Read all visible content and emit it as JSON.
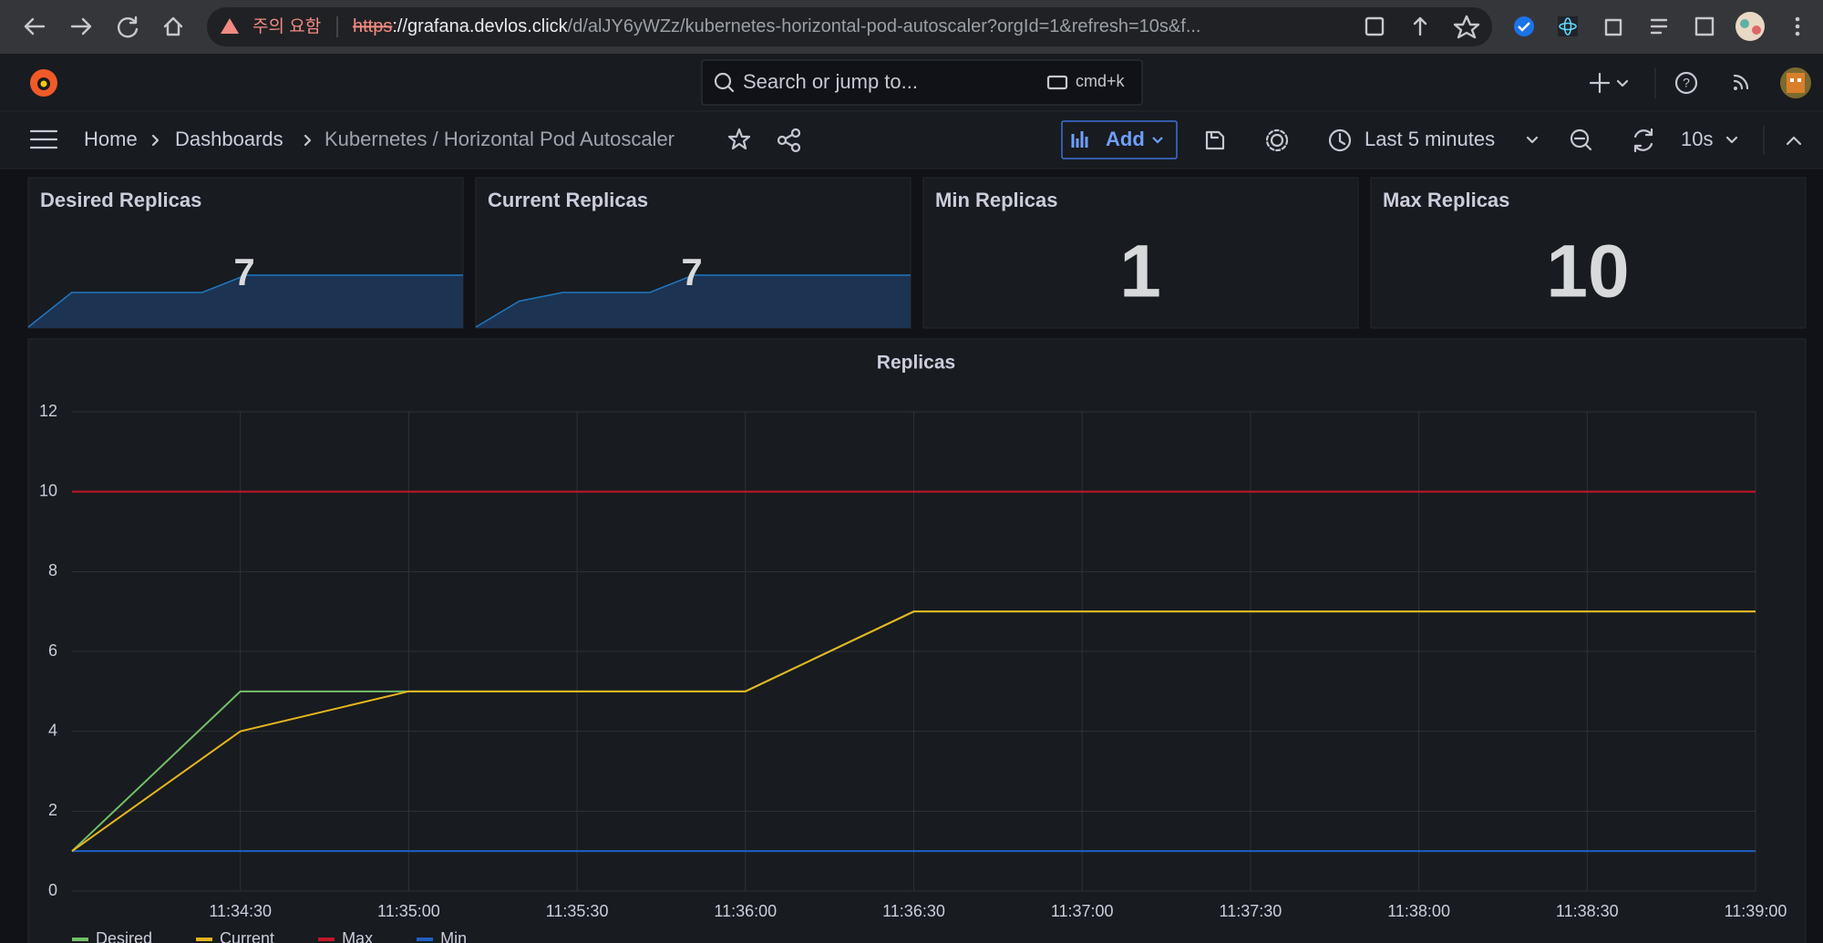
{
  "browser": {
    "warning": "주의 요함",
    "url_scheme": "https",
    "url_host": "://grafana.devlos.click",
    "url_path": "/d/alJY6yWZz/kubernetes-horizontal-pod-autoscaler?orgId=1&refresh=10s&f..."
  },
  "topbar": {
    "search_placeholder": "Search or jump to...",
    "shortcut": "cmd+k"
  },
  "breadcrumb": {
    "items": [
      "Home",
      "Dashboards",
      "Kubernetes / Horizontal Pod Autoscaler"
    ]
  },
  "toolbar": {
    "add": "Add",
    "time_range": "Last 5 minutes",
    "refresh": "10s"
  },
  "stats": [
    {
      "title": "Desired Replicas",
      "value": 7
    },
    {
      "title": "Current Replicas",
      "value": 7
    },
    {
      "title": "Min Replicas",
      "value": 1
    },
    {
      "title": "Max Replicas",
      "value": 10
    }
  ],
  "chart_data": {
    "type": "line",
    "title": "Replicas",
    "x": [
      "11:34:00",
      "11:34:30",
      "11:35:00",
      "11:36:00",
      "11:36:30",
      "11:39:00"
    ],
    "xlim": [
      "11:34:00",
      "11:39:00"
    ],
    "xticks": [
      "11:34:30",
      "11:35:00",
      "11:35:30",
      "11:36:00",
      "11:36:30",
      "11:37:00",
      "11:37:30",
      "11:38:00",
      "11:38:30",
      "11:39:00"
    ],
    "ylim": [
      0,
      12
    ],
    "yticks": [
      0,
      2,
      4,
      6,
      8,
      10,
      12
    ],
    "grid": true,
    "legend": "bottom",
    "series": [
      {
        "name": "Desired",
        "color": "#73bf69",
        "values": [
          1,
          5,
          5,
          5,
          7,
          7
        ]
      },
      {
        "name": "Current",
        "color": "#e5b51f",
        "values": [
          1,
          4,
          5,
          5,
          7,
          7
        ]
      },
      {
        "name": "Max",
        "color": "#c4162a",
        "values": [
          10,
          10,
          10,
          10,
          10,
          10
        ]
      },
      {
        "name": "Min",
        "color": "#1f60c4",
        "values": [
          1,
          1,
          1,
          1,
          1,
          1
        ]
      }
    ]
  }
}
